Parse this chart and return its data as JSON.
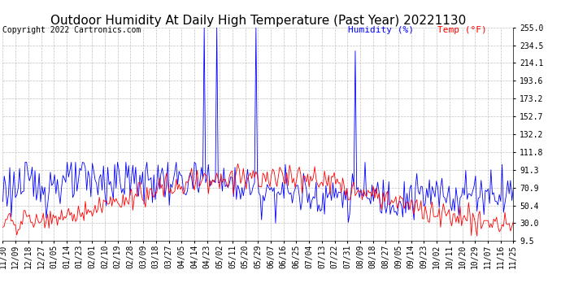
{
  "title": "Outdoor Humidity At Daily High Temperature (Past Year) 20221130",
  "copyright": "Copyright 2022 Cartronics.com",
  "legend_humidity": "Humidity (%)",
  "legend_temp": "Temp (°F)",
  "ylabel_right_ticks": [
    255.0,
    234.5,
    214.1,
    193.6,
    173.2,
    152.7,
    132.2,
    111.8,
    91.3,
    70.9,
    50.4,
    30.0,
    9.5
  ],
  "x_labels": [
    "11/30",
    "12/09",
    "12/18",
    "12/27",
    "01/05",
    "01/14",
    "01/23",
    "02/01",
    "02/10",
    "02/19",
    "02/28",
    "03/09",
    "03/18",
    "03/27",
    "04/05",
    "04/14",
    "04/23",
    "05/02",
    "05/11",
    "05/20",
    "05/29",
    "06/07",
    "06/16",
    "06/25",
    "07/04",
    "07/13",
    "07/22",
    "07/31",
    "08/09",
    "08/18",
    "08/27",
    "09/05",
    "09/14",
    "09/23",
    "10/02",
    "10/11",
    "10/20",
    "10/29",
    "11/07",
    "11/16",
    "11/25"
  ],
  "humidity_color": "#0000ff",
  "temp_color": "#ff0000",
  "background_color": "#ffffff",
  "grid_color": "#999999",
  "title_fontsize": 11,
  "copyright_fontsize": 7,
  "legend_fontsize": 8,
  "tick_fontsize": 7,
  "ylim": [
    9.5,
    255.0
  ],
  "num_points": 366,
  "humidity_seed": 123,
  "temp_seed": 456
}
